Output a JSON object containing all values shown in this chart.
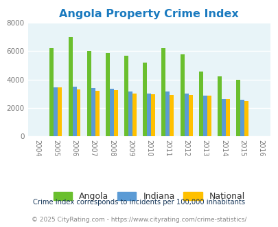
{
  "title": "Angola Property Crime Index",
  "years": [
    2004,
    2005,
    2006,
    2007,
    2008,
    2009,
    2010,
    2011,
    2012,
    2013,
    2014,
    2015,
    2016
  ],
  "angola": [
    null,
    6200,
    7000,
    6030,
    5870,
    5680,
    5200,
    6200,
    5750,
    4550,
    4200,
    3980,
    null
  ],
  "indiana": [
    null,
    3420,
    3500,
    3390,
    3360,
    3130,
    3020,
    3130,
    3030,
    2850,
    2620,
    2590,
    null
  ],
  "national": [
    null,
    3420,
    3310,
    3200,
    3230,
    3030,
    2970,
    2900,
    2900,
    2860,
    2620,
    2490,
    null
  ],
  "angola_color": "#6abf2e",
  "indiana_color": "#5b9bd5",
  "national_color": "#ffc000",
  "bg_color": "#e8f4f8",
  "ylim": [
    0,
    8000
  ],
  "yticks": [
    0,
    2000,
    4000,
    6000,
    8000
  ],
  "bar_width": 0.22,
  "legend_labels": [
    "Angola",
    "Indiana",
    "National"
  ],
  "footnote1": "Crime Index corresponds to incidents per 100,000 inhabitants",
  "footnote2": "© 2025 CityRating.com - https://www.cityrating.com/crime-statistics/"
}
